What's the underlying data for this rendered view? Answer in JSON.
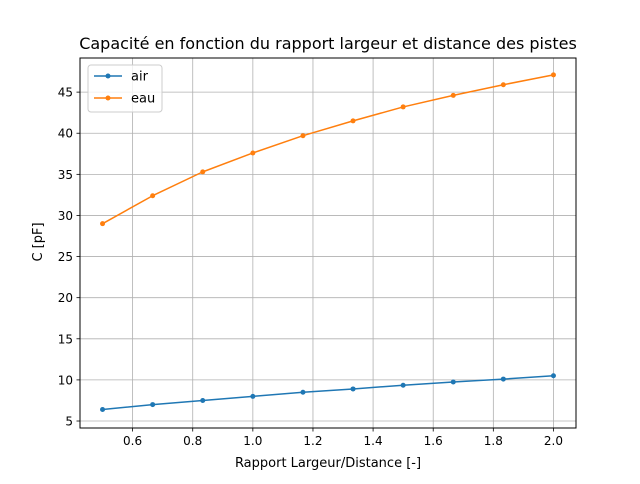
{
  "chart_data": {
    "type": "line",
    "title": "Capacité en fonction du rapport largeur et distance des pistes",
    "xlabel": "Rapport Largeur/Distance [-]",
    "ylabel": "C [pF]",
    "xlim": [
      0.425,
      2.075
    ],
    "ylim": [
      4.15,
      49.15
    ],
    "xticks": [
      0.6,
      0.8,
      1.0,
      1.2,
      1.4,
      1.6,
      1.8,
      2.0
    ],
    "xtick_labels": [
      "0.6",
      "0.8",
      "1.0",
      "1.2",
      "1.4",
      "1.6",
      "1.8",
      "2.0"
    ],
    "yticks": [
      5,
      10,
      15,
      20,
      25,
      30,
      35,
      40,
      45
    ],
    "ytick_labels": [
      "5",
      "10",
      "15",
      "20",
      "25",
      "30",
      "35",
      "40",
      "45"
    ],
    "grid": true,
    "legend_position": "top-left",
    "x": [
      0.5,
      0.6667,
      0.8333,
      1.0,
      1.1667,
      1.3333,
      1.5,
      1.6667,
      1.8333,
      2.0
    ],
    "series": [
      {
        "name": "air",
        "color": "#1f77b4",
        "values": [
          6.4,
          7.0,
          7.5,
          8.0,
          8.5,
          8.9,
          9.35,
          9.75,
          10.1,
          10.5
        ]
      },
      {
        "name": "eau",
        "color": "#ff7f0e",
        "values": [
          29.0,
          32.4,
          35.3,
          37.6,
          39.7,
          41.5,
          43.2,
          44.6,
          45.9,
          47.1
        ]
      }
    ]
  }
}
